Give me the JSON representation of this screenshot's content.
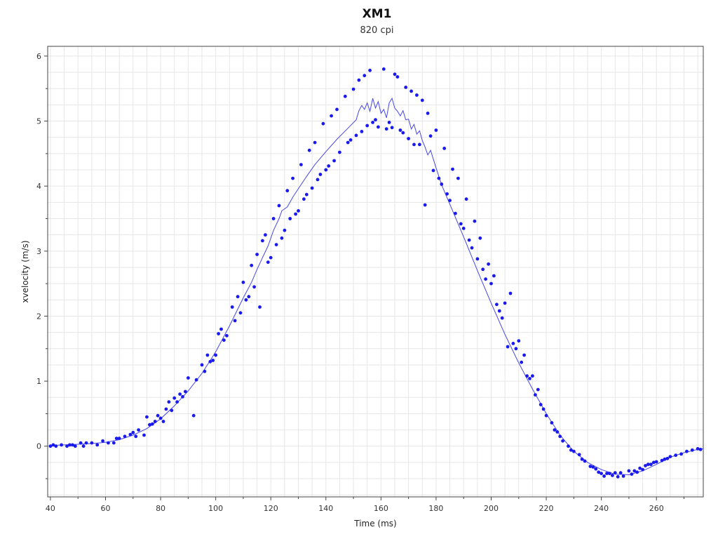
{
  "chart_data": {
    "type": "scatter",
    "title": "XM1",
    "subtitle": "820 cpi",
    "xlabel": "Time (ms)",
    "ylabel": "xvelocity (m/s)",
    "xlim": [
      39,
      277
    ],
    "ylim": [
      -0.78,
      6.15
    ],
    "xticks": [
      40,
      60,
      80,
      100,
      120,
      140,
      160,
      180,
      200,
      220,
      240,
      260
    ],
    "yticks": [
      0,
      1,
      2,
      3,
      4,
      5,
      6
    ],
    "grid": true,
    "colors": {
      "points": "#1a1aee",
      "line": "#4646e6",
      "grid": "#e6e6e6",
      "axis": "#444444"
    },
    "series": [
      {
        "kind": "points",
        "values": [
          [
            40,
            0.0
          ],
          [
            41,
            0.02
          ],
          [
            42,
            0.0
          ],
          [
            44,
            0.02
          ],
          [
            46,
            0.0
          ],
          [
            47,
            0.02
          ],
          [
            48,
            0.02
          ],
          [
            49,
            0.0
          ],
          [
            51,
            0.05
          ],
          [
            52,
            0.0
          ],
          [
            53,
            0.05
          ],
          [
            55,
            0.05
          ],
          [
            57,
            0.02
          ],
          [
            59,
            0.08
          ],
          [
            61,
            0.05
          ],
          [
            63,
            0.05
          ],
          [
            64,
            0.12
          ],
          [
            65,
            0.12
          ],
          [
            67,
            0.15
          ],
          [
            69,
            0.18
          ],
          [
            70,
            0.21
          ],
          [
            71,
            0.15
          ],
          [
            72,
            0.25
          ],
          [
            74,
            0.17
          ],
          [
            75,
            0.45
          ],
          [
            76,
            0.33
          ],
          [
            77,
            0.34
          ],
          [
            78,
            0.38
          ],
          [
            79,
            0.47
          ],
          [
            80,
            0.43
          ],
          [
            81,
            0.38
          ],
          [
            82,
            0.57
          ],
          [
            83,
            0.68
          ],
          [
            84,
            0.55
          ],
          [
            85,
            0.74
          ],
          [
            86,
            0.68
          ],
          [
            87,
            0.8
          ],
          [
            88,
            0.76
          ],
          [
            89,
            0.84
          ],
          [
            90,
            1.05
          ],
          [
            92,
            0.47
          ],
          [
            93,
            1.02
          ],
          [
            95,
            1.25
          ],
          [
            96,
            1.15
          ],
          [
            97,
            1.4
          ],
          [
            98,
            1.3
          ],
          [
            99,
            1.32
          ],
          [
            100,
            1.4
          ],
          [
            101,
            1.73
          ],
          [
            102,
            1.8
          ],
          [
            103,
            1.63
          ],
          [
            104,
            1.7
          ],
          [
            106,
            2.14
          ],
          [
            107,
            1.93
          ],
          [
            108,
            2.3
          ],
          [
            109,
            2.05
          ],
          [
            110,
            2.52
          ],
          [
            111,
            2.25
          ],
          [
            112,
            2.3
          ],
          [
            113,
            2.78
          ],
          [
            114,
            2.45
          ],
          [
            115,
            2.95
          ],
          [
            116,
            2.14
          ],
          [
            117,
            3.16
          ],
          [
            118,
            3.25
          ],
          [
            119,
            2.83
          ],
          [
            120,
            2.9
          ],
          [
            121,
            3.5
          ],
          [
            122,
            3.1
          ],
          [
            123,
            3.7
          ],
          [
            124,
            3.2
          ],
          [
            125,
            3.32
          ],
          [
            126,
            3.93
          ],
          [
            127,
            3.5
          ],
          [
            128,
            4.12
          ],
          [
            129,
            3.57
          ],
          [
            130,
            3.62
          ],
          [
            131,
            4.33
          ],
          [
            132,
            3.8
          ],
          [
            133,
            3.87
          ],
          [
            134,
            4.55
          ],
          [
            135,
            3.97
          ],
          [
            136,
            4.67
          ],
          [
            137,
            4.1
          ],
          [
            138,
            4.18
          ],
          [
            139,
            4.96
          ],
          [
            140,
            4.25
          ],
          [
            141,
            4.31
          ],
          [
            142,
            5.08
          ],
          [
            143,
            4.39
          ],
          [
            144,
            5.18
          ],
          [
            145,
            4.52
          ],
          [
            147,
            5.38
          ],
          [
            148,
            4.67
          ],
          [
            149,
            4.71
          ],
          [
            150,
            5.49
          ],
          [
            151,
            4.78
          ],
          [
            152,
            5.63
          ],
          [
            153,
            4.84
          ],
          [
            154,
            5.7
          ],
          [
            155,
            4.93
          ],
          [
            156,
            5.78
          ],
          [
            157,
            4.98
          ],
          [
            158,
            5.02
          ],
          [
            159,
            4.91
          ],
          [
            161,
            5.8
          ],
          [
            162,
            4.88
          ],
          [
            163,
            4.98
          ],
          [
            164,
            4.9
          ],
          [
            165,
            5.72
          ],
          [
            166,
            5.68
          ],
          [
            167,
            4.86
          ],
          [
            168,
            4.82
          ],
          [
            169,
            5.52
          ],
          [
            170,
            4.73
          ],
          [
            171,
            5.46
          ],
          [
            172,
            4.64
          ],
          [
            173,
            5.4
          ],
          [
            174,
            4.64
          ],
          [
            175,
            5.32
          ],
          [
            176,
            3.71
          ],
          [
            177,
            5.12
          ],
          [
            178,
            4.77
          ],
          [
            179,
            4.24
          ],
          [
            180,
            4.86
          ],
          [
            181,
            4.12
          ],
          [
            182,
            4.03
          ],
          [
            183,
            4.58
          ],
          [
            184,
            3.88
          ],
          [
            185,
            3.78
          ],
          [
            186,
            4.26
          ],
          [
            187,
            3.58
          ],
          [
            188,
            4.12
          ],
          [
            189,
            3.42
          ],
          [
            190,
            3.35
          ],
          [
            191,
            3.8
          ],
          [
            192,
            3.17
          ],
          [
            193,
            3.05
          ],
          [
            194,
            3.46
          ],
          [
            195,
            2.88
          ],
          [
            196,
            3.2
          ],
          [
            197,
            2.72
          ],
          [
            198,
            2.57
          ],
          [
            199,
            2.8
          ],
          [
            200,
            2.5
          ],
          [
            201,
            2.62
          ],
          [
            202,
            2.18
          ],
          [
            203,
            2.08
          ],
          [
            204,
            1.97
          ],
          [
            205,
            2.2
          ],
          [
            206,
            1.53
          ],
          [
            207,
            2.35
          ],
          [
            208,
            1.58
          ],
          [
            209,
            1.5
          ],
          [
            210,
            1.62
          ],
          [
            211,
            1.29
          ],
          [
            212,
            1.4
          ],
          [
            213,
            1.08
          ],
          [
            214,
            1.04
          ],
          [
            215,
            1.08
          ],
          [
            216,
            0.79
          ],
          [
            217,
            0.87
          ],
          [
            218,
            0.64
          ],
          [
            219,
            0.57
          ],
          [
            220,
            0.47
          ],
          [
            222,
            0.36
          ],
          [
            223,
            0.25
          ],
          [
            224,
            0.22
          ],
          [
            225,
            0.15
          ],
          [
            226,
            0.08
          ],
          [
            228,
            0.0
          ],
          [
            229,
            -0.06
          ],
          [
            230,
            -0.08
          ],
          [
            232,
            -0.13
          ],
          [
            233,
            -0.2
          ],
          [
            234,
            -0.23
          ],
          [
            236,
            -0.31
          ],
          [
            237,
            -0.32
          ],
          [
            238,
            -0.35
          ],
          [
            239,
            -0.4
          ],
          [
            240,
            -0.42
          ],
          [
            241,
            -0.46
          ],
          [
            242,
            -0.42
          ],
          [
            243,
            -0.42
          ],
          [
            244,
            -0.45
          ],
          [
            245,
            -0.41
          ],
          [
            246,
            -0.47
          ],
          [
            247,
            -0.41
          ],
          [
            248,
            -0.46
          ],
          [
            250,
            -0.38
          ],
          [
            251,
            -0.43
          ],
          [
            252,
            -0.38
          ],
          [
            253,
            -0.4
          ],
          [
            254,
            -0.34
          ],
          [
            255,
            -0.36
          ],
          [
            256,
            -0.3
          ],
          [
            257,
            -0.28
          ],
          [
            258,
            -0.28
          ],
          [
            259,
            -0.25
          ],
          [
            260,
            -0.24
          ],
          [
            262,
            -0.22
          ],
          [
            263,
            -0.2
          ],
          [
            264,
            -0.19
          ],
          [
            265,
            -0.16
          ],
          [
            267,
            -0.14
          ],
          [
            269,
            -0.12
          ],
          [
            271,
            -0.08
          ],
          [
            273,
            -0.06
          ],
          [
            275,
            -0.04
          ],
          [
            276,
            -0.05
          ]
        ]
      },
      {
        "kind": "line",
        "values": [
          [
            40,
            0.01
          ],
          [
            45,
            0.02
          ],
          [
            50,
            0.03
          ],
          [
            55,
            0.04
          ],
          [
            60,
            0.06
          ],
          [
            65,
            0.1
          ],
          [
            70,
            0.17
          ],
          [
            75,
            0.27
          ],
          [
            80,
            0.42
          ],
          [
            85,
            0.62
          ],
          [
            90,
            0.85
          ],
          [
            95,
            1.12
          ],
          [
            100,
            1.45
          ],
          [
            105,
            1.85
          ],
          [
            110,
            2.28
          ],
          [
            113,
            2.52
          ],
          [
            115,
            2.72
          ],
          [
            117,
            2.9
          ],
          [
            119,
            3.08
          ],
          [
            121,
            3.32
          ],
          [
            123,
            3.5
          ],
          [
            124,
            3.62
          ],
          [
            126,
            3.68
          ],
          [
            128,
            3.83
          ],
          [
            130,
            3.96
          ],
          [
            133,
            4.15
          ],
          [
            136,
            4.33
          ],
          [
            140,
            4.53
          ],
          [
            144,
            4.72
          ],
          [
            148,
            4.89
          ],
          [
            151,
            5.02
          ],
          [
            152,
            5.16
          ],
          [
            153,
            5.24
          ],
          [
            154,
            5.18
          ],
          [
            155,
            5.28
          ],
          [
            156,
            5.15
          ],
          [
            157,
            5.35
          ],
          [
            158,
            5.2
          ],
          [
            159,
            5.3
          ],
          [
            160,
            5.12
          ],
          [
            161,
            5.18
          ],
          [
            162,
            5.05
          ],
          [
            163,
            5.28
          ],
          [
            164,
            5.35
          ],
          [
            165,
            5.2
          ],
          [
            166,
            5.15
          ],
          [
            167,
            5.08
          ],
          [
            168,
            5.16
          ],
          [
            169,
            5.02
          ],
          [
            170,
            5.03
          ],
          [
            171,
            4.88
          ],
          [
            172,
            4.95
          ],
          [
            173,
            4.8
          ],
          [
            174,
            4.85
          ],
          [
            175,
            4.7
          ],
          [
            176,
            4.6
          ],
          [
            177,
            4.48
          ],
          [
            178,
            4.55
          ],
          [
            180,
            4.28
          ],
          [
            182,
            4.02
          ],
          [
            185,
            3.72
          ],
          [
            190,
            3.22
          ],
          [
            195,
            2.7
          ],
          [
            200,
            2.2
          ],
          [
            205,
            1.72
          ],
          [
            210,
            1.28
          ],
          [
            215,
            0.88
          ],
          [
            220,
            0.5
          ],
          [
            225,
            0.17
          ],
          [
            230,
            -0.08
          ],
          [
            235,
            -0.25
          ],
          [
            240,
            -0.36
          ],
          [
            245,
            -0.43
          ],
          [
            250,
            -0.44
          ],
          [
            255,
            -0.38
          ],
          [
            260,
            -0.28
          ],
          [
            265,
            -0.17
          ],
          [
            270,
            -0.1
          ],
          [
            275,
            -0.05
          ],
          [
            277,
            -0.04
          ]
        ]
      }
    ]
  }
}
